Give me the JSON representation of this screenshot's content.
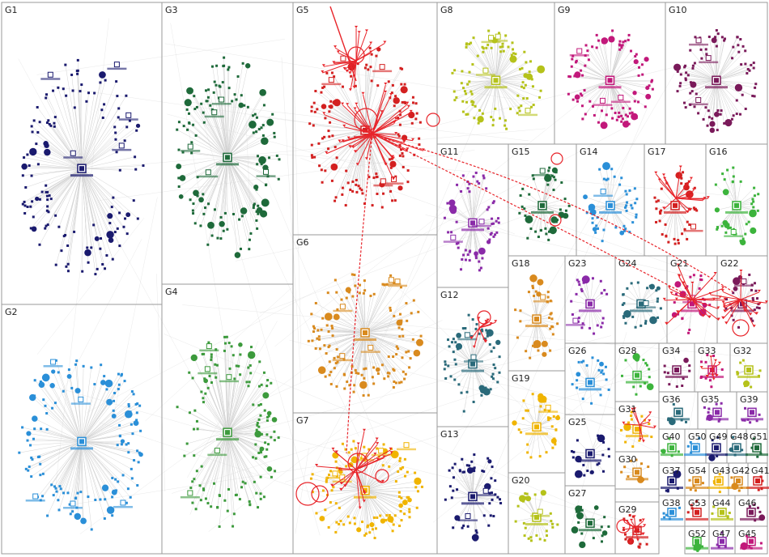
{
  "diagram": {
    "type": "network-graph",
    "layout": "grouped clusters (treemap)",
    "edge_highlight_color": "#e8242a",
    "edge_color": "#d4d4d4",
    "groups": [
      {
        "id": "G1",
        "color": "#1a1a6e"
      },
      {
        "id": "G2",
        "color": "#2a8fd8"
      },
      {
        "id": "G3",
        "color": "#1e6a3a"
      },
      {
        "id": "G4",
        "color": "#3c9a3c"
      },
      {
        "id": "G5",
        "color": "#d32020"
      },
      {
        "id": "G6",
        "color": "#d98a1e"
      },
      {
        "id": "G7",
        "color": "#f0b400"
      },
      {
        "id": "G8",
        "color": "#b5c21a"
      },
      {
        "id": "G9",
        "color": "#c2187a"
      },
      {
        "id": "G10",
        "color": "#7a1a5a"
      },
      {
        "id": "G11",
        "color": "#8a2aa8"
      },
      {
        "id": "G12",
        "color": "#2a6a7a"
      },
      {
        "id": "G13",
        "color": "#1a1a6e"
      },
      {
        "id": "G14",
        "color": "#2a8fd8"
      },
      {
        "id": "G15",
        "color": "#1e6a3a"
      },
      {
        "id": "G16",
        "color": "#3cb43c"
      },
      {
        "id": "G17",
        "color": "#d32020"
      },
      {
        "id": "G18",
        "color": "#d98a1e"
      },
      {
        "id": "G19",
        "color": "#f0b400"
      },
      {
        "id": "G20",
        "color": "#b5c21a"
      },
      {
        "id": "G21",
        "color": "#c2187a"
      },
      {
        "id": "G22",
        "color": "#7a1a5a"
      },
      {
        "id": "G23",
        "color": "#8a2aa8"
      },
      {
        "id": "G24",
        "color": "#2a6a7a"
      },
      {
        "id": "G25",
        "color": "#1a1a6e"
      },
      {
        "id": "G26",
        "color": "#2a8fd8"
      },
      {
        "id": "G27",
        "color": "#1e6a3a"
      },
      {
        "id": "G28",
        "color": "#3cb43c"
      },
      {
        "id": "G29",
        "color": "#d32020"
      },
      {
        "id": "G30",
        "color": "#d98a1e"
      },
      {
        "id": "G31",
        "color": "#f0b400"
      },
      {
        "id": "G32",
        "color": "#b5c21a"
      },
      {
        "id": "G33",
        "color": "#c2187a"
      },
      {
        "id": "G34",
        "color": "#7a1a5a"
      },
      {
        "id": "G35",
        "color": "#8a2aa8"
      },
      {
        "id": "G36",
        "color": "#2a6a7a"
      },
      {
        "id": "G37",
        "color": "#1a1a6e"
      },
      {
        "id": "G38",
        "color": "#2a8fd8"
      },
      {
        "id": "G39",
        "color": "#8a2aa8"
      },
      {
        "id": "G40",
        "color": "#3cb43c"
      },
      {
        "id": "G41",
        "color": "#d32020"
      },
      {
        "id": "G42",
        "color": "#d98a1e"
      },
      {
        "id": "G43",
        "color": "#f0b400"
      },
      {
        "id": "G44",
        "color": "#b5c21a"
      },
      {
        "id": "G45",
        "color": "#c2187a"
      },
      {
        "id": "G46",
        "color": "#7a1a5a"
      },
      {
        "id": "G47",
        "color": "#8a2aa8"
      },
      {
        "id": "G48",
        "color": "#2a6a7a"
      },
      {
        "id": "G49",
        "color": "#1a1a6e"
      },
      {
        "id": "G50",
        "color": "#2a8fd8"
      },
      {
        "id": "G51",
        "color": "#1e6a3a"
      },
      {
        "id": "G52",
        "color": "#3cb43c"
      },
      {
        "id": "G53",
        "color": "#d32020"
      },
      {
        "id": "G54",
        "color": "#d98a1e"
      }
    ]
  }
}
